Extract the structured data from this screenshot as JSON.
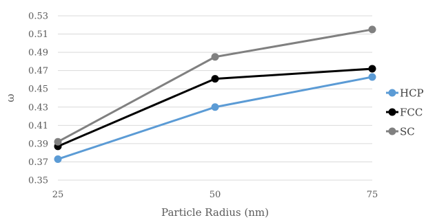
{
  "chart_data": {
    "type": "line",
    "title": "",
    "xlabel": "Particle Radius (nm)",
    "ylabel": "ω",
    "categories": [
      "25",
      "50",
      "75"
    ],
    "yticks": [
      "0.35",
      "0.37",
      "0.39",
      "0.41",
      "0.43",
      "0.45",
      "0.47",
      "0.49",
      "0.51",
      "0.53"
    ],
    "ylim": [
      0.35,
      0.53
    ],
    "grid": true,
    "legend_position": "right",
    "series": [
      {
        "name": "HCP",
        "color": "#5b9bd5",
        "values": [
          0.373,
          0.43,
          0.463
        ]
      },
      {
        "name": "FCC",
        "color": "#000000",
        "values": [
          0.387,
          0.461,
          0.472
        ]
      },
      {
        "name": "SC",
        "color": "#808080",
        "values": [
          0.392,
          0.485,
          0.515
        ]
      }
    ]
  }
}
